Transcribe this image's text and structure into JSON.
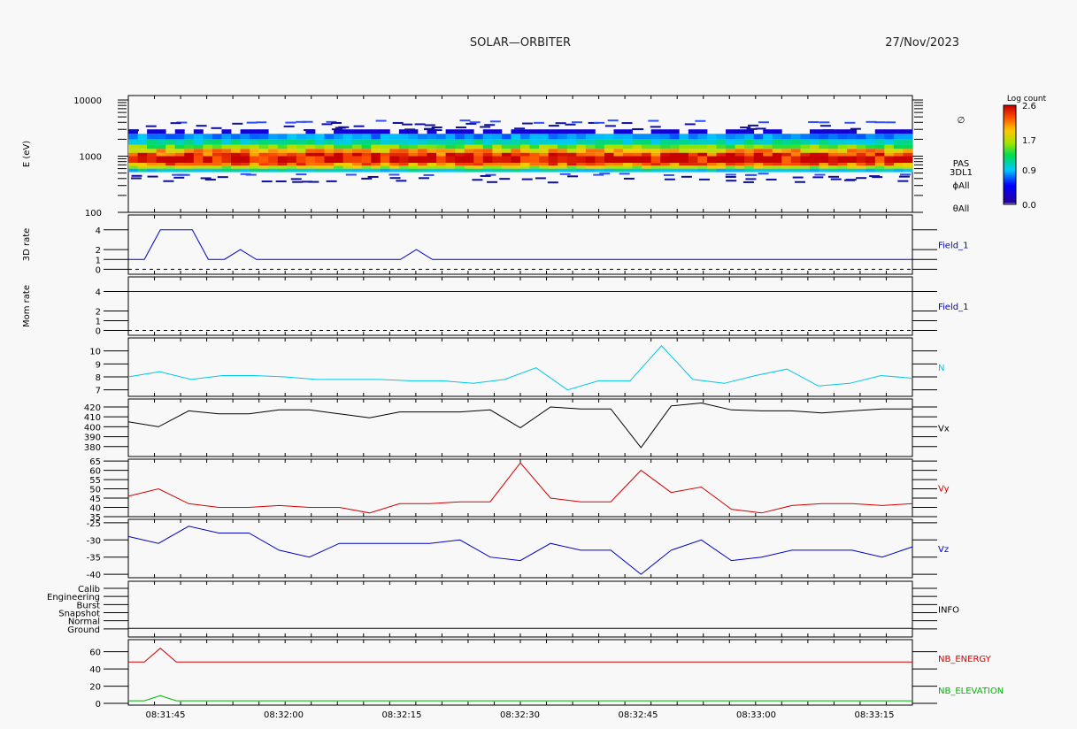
{
  "header": {
    "title": "SOLAR—ORBITER",
    "date": "27/Nov/2023"
  },
  "colorbar": {
    "title": "Log count",
    "ticks": [
      "2.6",
      "1.7",
      "0.9",
      "0.0"
    ],
    "range": [
      0.0,
      2.6
    ]
  },
  "time_labels": [
    "08:31:45",
    "08:32:00",
    "08:32:15",
    "08:32:30",
    "08:32:45",
    "08:33:00",
    "08:33:15"
  ],
  "chart_data": [
    {
      "type": "heatmap",
      "id": "spectrogram",
      "ylabel": "E (eV)",
      "yscale": "log",
      "ylim": [
        100,
        12000
      ],
      "yticks": [
        "10000",
        "1000",
        "100"
      ],
      "right_labels": [
        "∅",
        "PAS",
        "3DL1",
        "ϕAll",
        "θAll"
      ],
      "bands": [
        {
          "emin": 520,
          "emax": 600,
          "level": 1.0
        },
        {
          "emin": 600,
          "emax": 680,
          "level": 1.7
        },
        {
          "emin": 680,
          "emax": 760,
          "level": 2.2
        },
        {
          "emin": 760,
          "emax": 1000,
          "level": 2.6
        },
        {
          "emin": 1000,
          "emax": 1150,
          "level": 2.4
        },
        {
          "emin": 1150,
          "emax": 1350,
          "level": 2.0
        },
        {
          "emin": 1350,
          "emax": 1600,
          "level": 1.5
        },
        {
          "emin": 1600,
          "emax": 2000,
          "level": 1.1
        },
        {
          "emin": 2000,
          "emax": 2500,
          "level": 0.8
        },
        {
          "emin": 2500,
          "emax": 3000,
          "level": 0.3
        }
      ]
    },
    {
      "type": "line",
      "id": "rate3d",
      "ylabel": "3D rate",
      "ylim": [
        -0.5,
        5.5
      ],
      "yticks": [
        "4",
        "2",
        "1",
        "0"
      ],
      "right_label": "Field_1",
      "right_color": "#0000c8",
      "series": [
        {
          "color": "#0000c8",
          "values": [
            1,
            1,
            4,
            4,
            4,
            1,
            1,
            2,
            1,
            1,
            1,
            1,
            1,
            1,
            1,
            1,
            1,
            1,
            2,
            1,
            1,
            1,
            1,
            1,
            1,
            1,
            1,
            1,
            1,
            1,
            1,
            1,
            1,
            1,
            1,
            1,
            1,
            1,
            1,
            1,
            1,
            1,
            1,
            1,
            1,
            1,
            1,
            1,
            1,
            1
          ]
        }
      ],
      "dashed_zero": true
    },
    {
      "type": "line",
      "id": "momrate",
      "ylabel": "Mom rate",
      "ylim": [
        -0.5,
        5.5
      ],
      "yticks": [
        "4",
        "2",
        "1",
        "0"
      ],
      "right_label": "Field_1",
      "right_color": "#0000c8",
      "series": [
        {
          "color": "#0000c8",
          "values": [
            4,
            4
          ]
        }
      ],
      "dashed_zero": true
    },
    {
      "type": "line",
      "id": "density",
      "ylabel": "",
      "ylim": [
        6.5,
        11
      ],
      "yticks": [
        "10",
        "9",
        "8",
        "7"
      ],
      "right_label": "N",
      "right_color": "#00c8e8",
      "series": [
        {
          "color": "#00c8e8",
          "values": [
            8.0,
            8.4,
            7.8,
            8.1,
            8.1,
            8.0,
            7.8,
            7.8,
            7.8,
            7.7,
            7.7,
            7.5,
            7.8,
            8.7,
            7.0,
            7.7,
            7.7,
            10.4,
            7.8,
            7.5,
            8.1,
            8.6,
            7.3,
            7.5,
            8.1,
            7.9
          ]
        }
      ]
    },
    {
      "type": "line",
      "id": "vx",
      "ylabel": "",
      "ylim": [
        370,
        428
      ],
      "yticks": [
        "420",
        "410",
        "400",
        "390",
        "380"
      ],
      "right_label": "Vx",
      "right_color": "#000000",
      "series": [
        {
          "color": "#000000",
          "values": [
            405,
            400,
            416,
            413,
            413,
            417,
            417,
            413,
            409,
            415,
            415,
            415,
            417,
            399,
            420,
            418,
            418,
            379,
            421,
            424,
            417,
            416,
            416,
            414,
            416,
            418,
            418
          ]
        }
      ]
    },
    {
      "type": "line",
      "id": "vy",
      "ylabel": "",
      "ylim": [
        35,
        66
      ],
      "yticks": [
        "65",
        "60",
        "55",
        "50",
        "45",
        "40",
        "35"
      ],
      "right_label": "Vy",
      "right_color": "#d40000",
      "series": [
        {
          "color": "#d40000",
          "values": [
            46,
            50,
            42,
            40,
            40,
            41,
            40,
            40,
            37,
            42,
            42,
            43,
            43,
            64,
            45,
            43,
            43,
            60,
            48,
            51,
            39,
            37,
            41,
            42,
            42,
            41,
            42
          ]
        }
      ]
    },
    {
      "type": "line",
      "id": "vz",
      "ylabel": "",
      "ylim": [
        -41,
        -24
      ],
      "yticks": [
        "-25",
        "-30",
        "-35",
        "-40"
      ],
      "right_label": "Vz",
      "right_color": "#0000c8",
      "series": [
        {
          "color": "#0000c8",
          "values": [
            -29,
            -31,
            -26,
            -28,
            -28,
            -33,
            -35,
            -31,
            -31,
            -31,
            -31,
            -30,
            -35,
            -36,
            -31,
            -33,
            -33,
            -40,
            -33,
            -30,
            -36,
            -35,
            -33,
            -33,
            -33,
            -35,
            -32
          ]
        }
      ]
    },
    {
      "type": "table",
      "id": "info",
      "ylabel": "",
      "rows": [
        "Calib",
        "Engineering",
        "Burst",
        "Snapshot",
        "Normal",
        "Ground"
      ],
      "right_label": "INFO",
      "right_color": "#000000",
      "active_row": "Ground"
    },
    {
      "type": "line",
      "id": "nb",
      "ylabel": "",
      "ylim": [
        -2,
        74
      ],
      "yticks": [
        "60",
        "40",
        "20",
        "0"
      ],
      "right_labels": [
        {
          "text": "NB_ENERGY",
          "color": "#d40000"
        },
        {
          "text": "NB_ELEVATION",
          "color": "#00b400"
        }
      ],
      "series": [
        {
          "color": "#d40000",
          "values": [
            48,
            48,
            64,
            48,
            48,
            48,
            48,
            48,
            48,
            48,
            48,
            48,
            48,
            48,
            48,
            48,
            48,
            48,
            48,
            48,
            48,
            48,
            48,
            48,
            48,
            48,
            48,
            48,
            48,
            48,
            48,
            48,
            48,
            48,
            48,
            48,
            48,
            48,
            48,
            48,
            48,
            48,
            48,
            48,
            48,
            48,
            48,
            48,
            48,
            48
          ]
        },
        {
          "color": "#00b400",
          "values": [
            3,
            3,
            9,
            3,
            3,
            3,
            3,
            3,
            3,
            3,
            3,
            3,
            3,
            3,
            3,
            3,
            3,
            3,
            3,
            3,
            3,
            3,
            3,
            3,
            3,
            3,
            3,
            3,
            3,
            3,
            3,
            3,
            3,
            3,
            3,
            3,
            3,
            3,
            3,
            3,
            3,
            3,
            3,
            3,
            3,
            3,
            3,
            3,
            3,
            3
          ]
        }
      ]
    }
  ]
}
